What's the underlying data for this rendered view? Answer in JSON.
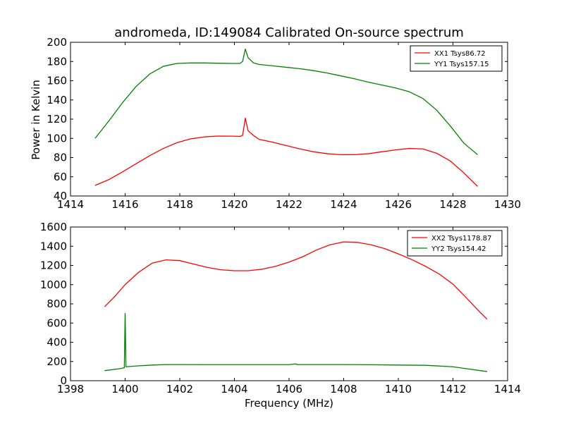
{
  "figure": {
    "title": "andromeda, ID:149084 Calibrated On-source spectrum",
    "ylabel": "Power in Kelvin",
    "xlabel": "Frequency (MHz)"
  },
  "chart_data": [
    {
      "type": "line",
      "title": "andromeda, ID:149084 Calibrated On-source spectrum",
      "xlabel": "",
      "ylabel": "Power in Kelvin",
      "xlim": [
        1414,
        1430
      ],
      "ylim": [
        40,
        200
      ],
      "xticks": [
        1414,
        1416,
        1418,
        1420,
        1422,
        1424,
        1426,
        1428,
        1430
      ],
      "yticks": [
        40,
        60,
        80,
        100,
        120,
        140,
        160,
        180,
        200
      ],
      "grid": false,
      "legend_position": "top-right",
      "series": [
        {
          "name": "XX1 Tsys86.72",
          "color": "#ff0000",
          "points": [
            [
              1414.9,
              51
            ],
            [
              1415.4,
              57
            ],
            [
              1415.9,
              65
            ],
            [
              1416.4,
              73.5
            ],
            [
              1416.9,
              82
            ],
            [
              1417.4,
              89.5
            ],
            [
              1417.9,
              95.5
            ],
            [
              1418.4,
              99.5
            ],
            [
              1418.9,
              101.5
            ],
            [
              1419.4,
              102.4
            ],
            [
              1419.9,
              102.3
            ],
            [
              1420.2,
              102
            ],
            [
              1420.3,
              103
            ],
            [
              1420.4,
              121
            ],
            [
              1420.5,
              108
            ],
            [
              1420.7,
              103
            ],
            [
              1420.9,
              99
            ],
            [
              1421.4,
              96
            ],
            [
              1421.9,
              92.5
            ],
            [
              1422.4,
              89
            ],
            [
              1422.9,
              86
            ],
            [
              1423.4,
              84
            ],
            [
              1423.9,
              83
            ],
            [
              1424.4,
              83
            ],
            [
              1424.9,
              84
            ],
            [
              1425.4,
              86
            ],
            [
              1425.9,
              88
            ],
            [
              1426.4,
              89.5
            ],
            [
              1426.9,
              89
            ],
            [
              1427.4,
              84.5
            ],
            [
              1427.9,
              76.5
            ],
            [
              1428.4,
              64
            ],
            [
              1428.9,
              50
            ]
          ]
        },
        {
          "name": "YY1 Tsys157.15",
          "color": "#008000",
          "points": [
            [
              1414.9,
              100
            ],
            [
              1415.4,
              118
            ],
            [
              1415.9,
              137
            ],
            [
              1416.4,
              154
            ],
            [
              1416.9,
              167
            ],
            [
              1417.4,
              175
            ],
            [
              1417.9,
              178
            ],
            [
              1418.4,
              178.5
            ],
            [
              1418.9,
              178.5
            ],
            [
              1419.4,
              178.2
            ],
            [
              1419.9,
              178
            ],
            [
              1420.2,
              178
            ],
            [
              1420.3,
              180
            ],
            [
              1420.4,
              193
            ],
            [
              1420.5,
              184
            ],
            [
              1420.7,
              178.5
            ],
            [
              1420.9,
              177
            ],
            [
              1421.4,
              175.5
            ],
            [
              1421.9,
              174
            ],
            [
              1422.4,
              172.5
            ],
            [
              1422.9,
              170.5
            ],
            [
              1423.4,
              168
            ],
            [
              1423.9,
              165
            ],
            [
              1424.4,
              162
            ],
            [
              1424.9,
              158.5
            ],
            [
              1425.4,
              155.5
            ],
            [
              1425.9,
              152.5
            ],
            [
              1426.4,
              148.5
            ],
            [
              1426.9,
              141.5
            ],
            [
              1427.4,
              129.5
            ],
            [
              1427.9,
              113
            ],
            [
              1428.4,
              95
            ],
            [
              1428.9,
              83
            ]
          ]
        }
      ]
    },
    {
      "type": "line",
      "title": "",
      "xlabel": "Frequency (MHz)",
      "ylabel": "",
      "xlim": [
        1398,
        1414
      ],
      "ylim": [
        0,
        1600
      ],
      "xticks": [
        1398,
        1400,
        1402,
        1404,
        1406,
        1408,
        1410,
        1412,
        1414
      ],
      "yticks": [
        0,
        200,
        400,
        600,
        800,
        1000,
        1200,
        1400,
        1600
      ],
      "grid": false,
      "legend_position": "top-right",
      "series": [
        {
          "name": "XX2 Tsys1178.87",
          "color": "#ff0000",
          "points": [
            [
              1399.25,
              770
            ],
            [
              1399.6,
              870
            ],
            [
              1400,
              1000
            ],
            [
              1400.5,
              1130
            ],
            [
              1401,
              1225
            ],
            [
              1401.5,
              1258
            ],
            [
              1402,
              1250
            ],
            [
              1402.5,
              1215
            ],
            [
              1403,
              1180
            ],
            [
              1403.5,
              1155
            ],
            [
              1404,
              1145
            ],
            [
              1404.5,
              1145
            ],
            [
              1405,
              1160
            ],
            [
              1405.5,
              1190
            ],
            [
              1406,
              1235
            ],
            [
              1406.5,
              1290
            ],
            [
              1407,
              1360
            ],
            [
              1407.5,
              1415
            ],
            [
              1408,
              1445
            ],
            [
              1408.5,
              1440
            ],
            [
              1409,
              1415
            ],
            [
              1409.5,
              1375
            ],
            [
              1410,
              1320
            ],
            [
              1410.5,
              1260
            ],
            [
              1411,
              1190
            ],
            [
              1411.5,
              1110
            ],
            [
              1412,
              1005
            ],
            [
              1412.5,
              860
            ],
            [
              1413,
              710
            ],
            [
              1413.25,
              640
            ]
          ]
        },
        {
          "name": "YY2 Tsys154.42",
          "color": "#008000",
          "points": [
            [
              1399.25,
              105
            ],
            [
              1399.8,
              125
            ],
            [
              1399.97,
              135
            ],
            [
              1400,
              700
            ],
            [
              1400.03,
              145
            ],
            [
              1400.5,
              155
            ],
            [
              1401,
              163
            ],
            [
              1401.5,
              168
            ],
            [
              1402,
              168
            ],
            [
              1403,
              167
            ],
            [
              1404,
              167
            ],
            [
              1405,
              167
            ],
            [
              1406,
              167
            ],
            [
              1406.25,
              175
            ],
            [
              1406.3,
              168
            ],
            [
              1407,
              168
            ],
            [
              1408,
              168
            ],
            [
              1409,
              166
            ],
            [
              1410,
              163
            ],
            [
              1411,
              160
            ],
            [
              1412,
              145
            ],
            [
              1412.5,
              125
            ],
            [
              1413,
              105
            ],
            [
              1413.25,
              95
            ]
          ]
        }
      ]
    }
  ]
}
